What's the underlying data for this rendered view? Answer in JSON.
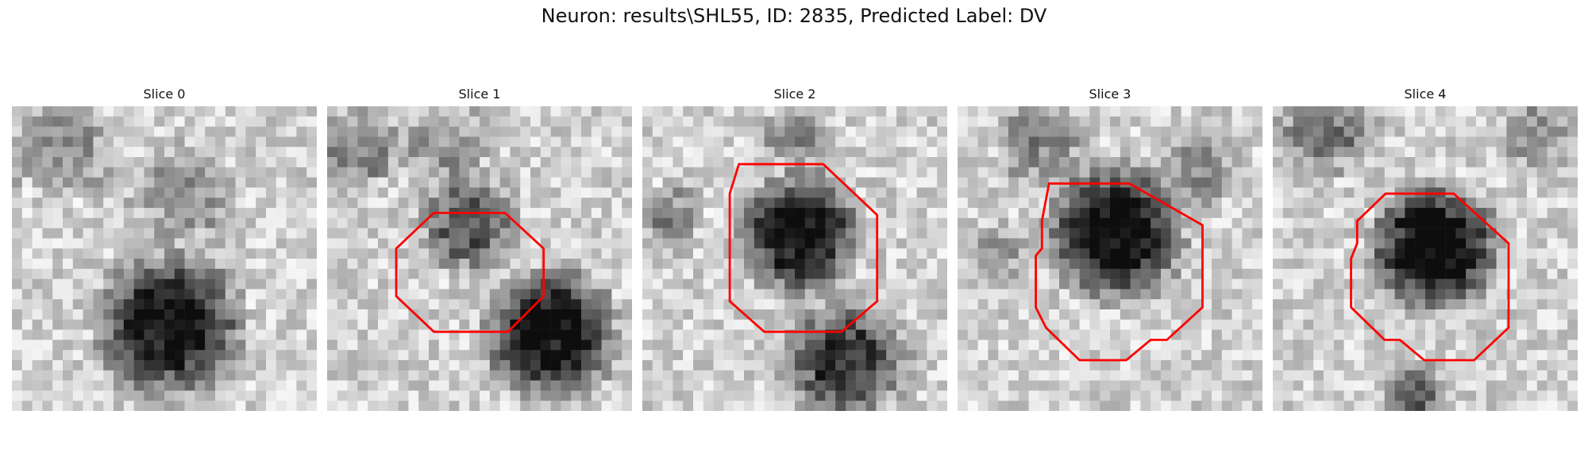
{
  "figure": {
    "title": "Neuron: results\\SHL55, ID: 2835, Predicted Label: DV"
  },
  "slices": [
    {
      "label": "Slice 0"
    },
    {
      "label": "Slice 1"
    },
    {
      "label": "Slice 2"
    },
    {
      "label": "Slice 3"
    },
    {
      "label": "Slice 4"
    }
  ],
  "colors": {
    "outline": "#ff0000",
    "background": "#ffffff"
  }
}
